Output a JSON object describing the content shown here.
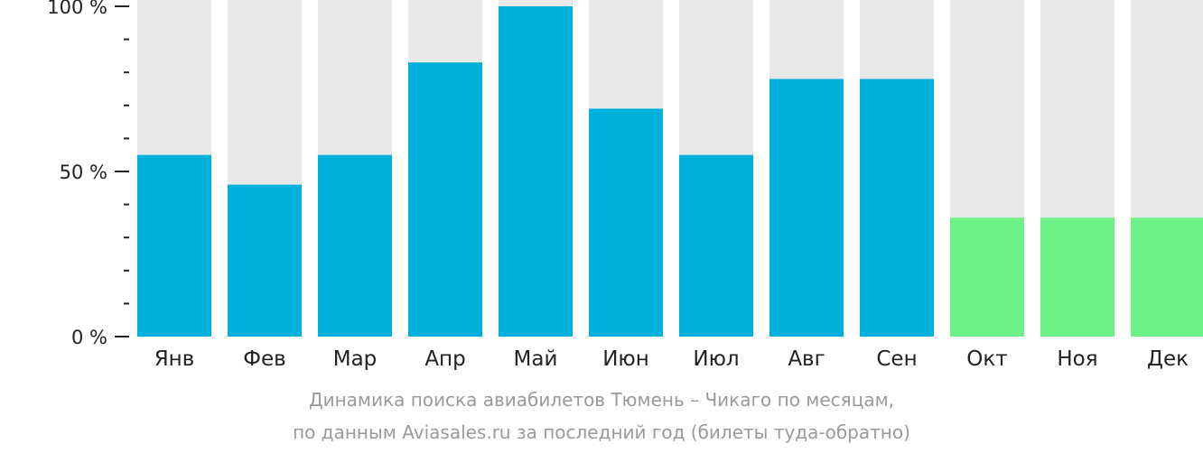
{
  "chart_data": {
    "type": "bar",
    "categories": [
      "Янв",
      "Фев",
      "Мар",
      "Апр",
      "Май",
      "Июн",
      "Июл",
      "Авг",
      "Сен",
      "Окт",
      "Ноя",
      "Дек"
    ],
    "values": [
      55,
      46,
      55,
      83,
      100,
      69,
      55,
      78,
      78,
      36,
      36,
      36
    ],
    "ylim": [
      0,
      100
    ],
    "ytick_labels": [
      "0 %",
      "50 %",
      "100 %"
    ],
    "ytick_values": [
      0,
      50,
      100
    ],
    "minor_tick_step": 10,
    "grid": false,
    "colors": {
      "bar": "#00b0dc",
      "bar_forecast": "#6cf286",
      "background_bar": "#e8e8e8",
      "axis": "#222222"
    },
    "forecast_from_index": 9
  },
  "caption": {
    "line1": "Динамика поиска авиабилетов Тюмень – Чикаго по месяцам,",
    "line2": "по данным Aviasales.ru за последний год (билеты туда-обратно)"
  }
}
